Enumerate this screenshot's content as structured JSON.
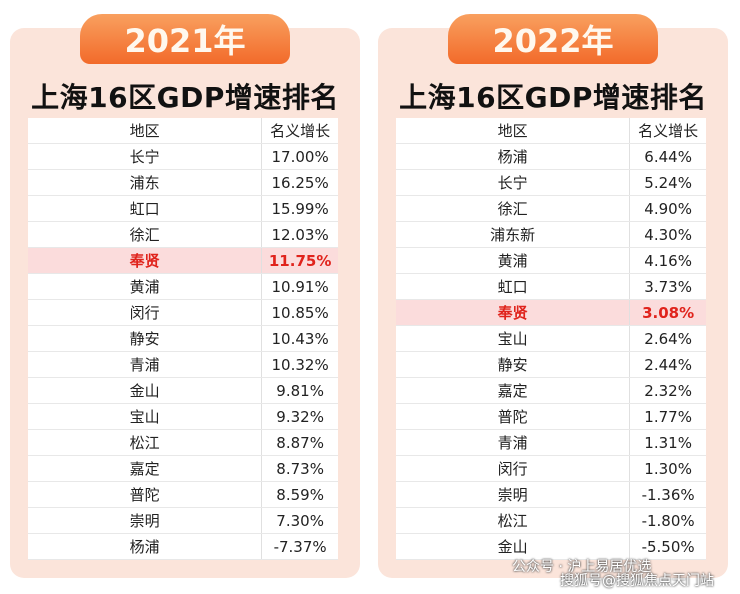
{
  "panels": [
    {
      "year": "2021年",
      "title": "上海16区GDP增速排名",
      "header": [
        "地区",
        "名义增长"
      ],
      "rows": [
        {
          "region": "长宁",
          "growth": "17.00%"
        },
        {
          "region": "浦东",
          "growth": "16.25%"
        },
        {
          "region": "虹口",
          "growth": "15.99%"
        },
        {
          "region": "徐汇",
          "growth": "12.03%"
        },
        {
          "region": "奉贤",
          "growth": "11.75%",
          "highlighted": true
        },
        {
          "region": "黄浦",
          "growth": "10.91%"
        },
        {
          "region": "闵行",
          "growth": "10.85%"
        },
        {
          "region": "静安",
          "growth": "10.43%"
        },
        {
          "region": "青浦",
          "growth": "10.32%"
        },
        {
          "region": "金山",
          "growth": "9.81%"
        },
        {
          "region": "宝山",
          "growth": "9.32%"
        },
        {
          "region": "松江",
          "growth": "8.87%"
        },
        {
          "region": "嘉定",
          "growth": "8.73%"
        },
        {
          "region": "普陀",
          "growth": "8.59%"
        },
        {
          "region": "崇明",
          "growth": "7.30%"
        },
        {
          "region": "杨浦",
          "growth": "-7.37%"
        }
      ]
    },
    {
      "year": "2022年",
      "title": "上海16区GDP增速排名",
      "header": [
        "地区",
        "名义增长"
      ],
      "rows": [
        {
          "region": "杨浦",
          "growth": "6.44%"
        },
        {
          "region": "长宁",
          "growth": "5.24%"
        },
        {
          "region": "徐汇",
          "growth": "4.90%"
        },
        {
          "region": "浦东新",
          "growth": "4.30%"
        },
        {
          "region": "黄浦",
          "growth": "4.16%"
        },
        {
          "region": "虹口",
          "growth": "3.73%"
        },
        {
          "region": "奉贤",
          "growth": "3.08%",
          "highlighted": true
        },
        {
          "region": "宝山",
          "growth": "2.64%"
        },
        {
          "region": "静安",
          "growth": "2.44%"
        },
        {
          "region": "嘉定",
          "growth": "2.32%"
        },
        {
          "region": "普陀",
          "growth": "1.77%"
        },
        {
          "region": "青浦",
          "growth": "1.31%"
        },
        {
          "region": "闵行",
          "growth": "1.30%"
        },
        {
          "region": "崇明",
          "growth": "-1.36%"
        },
        {
          "region": "松江",
          "growth": "-1.80%"
        },
        {
          "region": "金山",
          "growth": "-5.50%"
        }
      ]
    }
  ],
  "watermarks": [
    "公众号 · 沪上易居优选",
    "搜狐号@搜狐焦点天门站"
  ]
}
